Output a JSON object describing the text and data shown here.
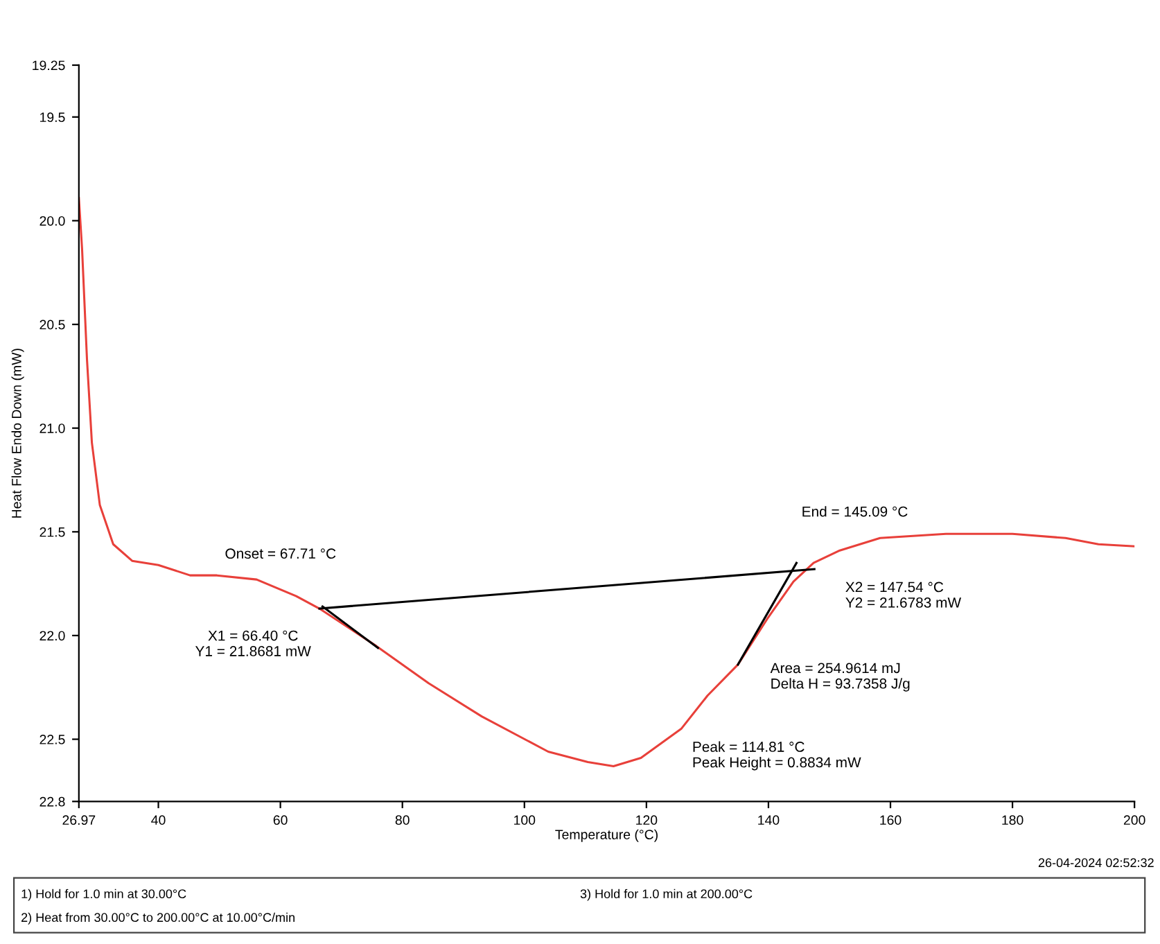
{
  "chart_data": {
    "type": "line",
    "xlabel": "Temperature (°C)",
    "ylabel": "Heat Flow Endo Down (mW)",
    "xlim": [
      26.97,
      200
    ],
    "xticks": [
      26.97,
      40,
      60,
      80,
      100,
      120,
      140,
      160,
      180,
      200
    ],
    "ylim": [
      22.8,
      19.25
    ],
    "yticks": [
      19.25,
      19.5,
      {
        "value": 20,
        "label": "20.0"
      },
      20.5,
      {
        "value": 21,
        "label": "21.0"
      },
      21.5,
      {
        "value": 22,
        "label": "22.0"
      },
      22.5,
      22.8
    ],
    "grid": false,
    "legend": false,
    "series": [
      {
        "color": "#e8403a",
        "x": [
          26.97,
          27.5,
          28.3,
          29.1,
          30.4,
          32.6,
          35.7,
          40,
          45.2,
          49.6,
          56.1,
          62.6,
          66.4,
          75.7,
          84.3,
          93.0,
          103.9,
          110.4,
          114.6,
          119.1,
          125.7,
          130.0,
          135.0,
          139.8,
          144.1,
          147.4,
          151.7,
          158.3,
          169.1,
          180,
          188.7,
          194.1,
          200
        ],
        "values": [
          19.89,
          20.14,
          20.67,
          21.07,
          21.37,
          21.56,
          21.64,
          21.66,
          21.71,
          21.71,
          21.73,
          21.81,
          21.87,
          22.05,
          22.23,
          22.39,
          22.56,
          22.61,
          22.63,
          22.59,
          22.45,
          22.29,
          22.14,
          21.92,
          21.74,
          21.65,
          21.59,
          21.53,
          21.51,
          21.51,
          21.53,
          21.56,
          21.57
        ]
      },
      {
        "color": "#000000",
        "x": [
          66.4,
          147.54
        ],
        "values": [
          21.87,
          21.68
        ]
      },
      {
        "color": "#000000",
        "x": [
          66.9,
          76.0
        ],
        "values": [
          21.86,
          22.06
        ]
      },
      {
        "color": "#000000",
        "x": [
          135.0,
          144.6
        ],
        "values": [
          22.14,
          21.65
        ]
      }
    ],
    "annotations": [
      "Onset = 67.71 °C",
      "X1 = 66.40 °C\nY1 = 21.8681 mW",
      "End = 145.09 °C",
      "X2 = 147.54 °C\nY2 = 21.6783 mW",
      "Area = 254.9614 mJ\nDelta H = 93.7358 J/g",
      "Peak = 114.81 °C\nPeak Height = 0.8834 mW",
      "26-04-2024 02:52:32",
      "1) Hold for 1.0 min at 30.00°C",
      "2) Heat from 30.00°C to 200.00°C at 10.00°C/min",
      "3) Hold for 1.0 min at 200.00°C"
    ]
  }
}
